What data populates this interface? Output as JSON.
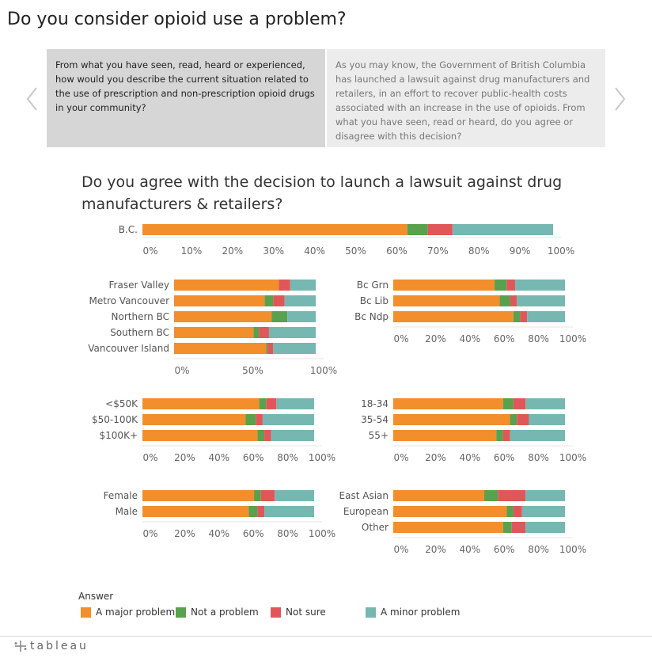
{
  "page": {
    "title": "Do you consider opioid use a problem?"
  },
  "carousel": {
    "cards": [
      "From what you have seen, read, heard or experienced, how would you describe the current situation related to the use of prescription and non-prescription opioid drugs in your community?",
      "As you may know, the Government of British Columbia has launched a lawsuit against drug manufacturers and retailers, in an effort to recover public-health costs associated with an increase in the use of opioids. From what you have seen, read or heard, do you agree or disagree with this decision?"
    ]
  },
  "footer": {
    "brand": "tableau"
  },
  "colors": {
    "major": "#f28e2b",
    "not": "#59a14f",
    "notsure": "#e15759",
    "minor": "#76b7b2"
  },
  "chart_data": {
    "type": "bar",
    "title": "Do you agree with the decision to launch a lawsuit against drug manufacturers & retailers?",
    "legend": {
      "title": "Answer",
      "placement": "bottom-left",
      "items": [
        {
          "key": "major",
          "label": "A major problem"
        },
        {
          "key": "not",
          "label": "Not a problem"
        },
        {
          "key": "notsure",
          "label": "Not sure"
        },
        {
          "key": "minor",
          "label": "A minor problem"
        }
      ]
    },
    "panels": [
      {
        "id": "bc",
        "ticks": [
          "0%",
          "10%",
          "20%",
          "30%",
          "40%",
          "50%",
          "60%",
          "70%",
          "80%",
          "90%",
          "100%"
        ],
        "rows": [
          {
            "label": "B.C.",
            "major": 64.5,
            "not": 5,
            "notsure": 6,
            "minor": 24.5
          }
        ]
      },
      {
        "id": "region",
        "ticks": [
          "0%",
          "50%",
          "100%"
        ],
        "rows": [
          {
            "label": "Fraser Valley",
            "major": 74,
            "not": 0,
            "notsure": 8,
            "minor": 18
          },
          {
            "label": "Metro Vancouver",
            "major": 64,
            "not": 6,
            "notsure": 8,
            "minor": 22
          },
          {
            "label": "Northern BC",
            "major": 69,
            "not": 11,
            "notsure": 0,
            "minor": 20
          },
          {
            "label": "Southern BC",
            "major": 56,
            "not": 4,
            "notsure": 7,
            "minor": 33
          },
          {
            "label": "Vancouver Island",
            "major": 65,
            "not": 1,
            "notsure": 4,
            "minor": 30
          }
        ]
      },
      {
        "id": "party",
        "ticks": [
          "0%",
          "20%",
          "40%",
          "60%",
          "80%",
          "100%"
        ],
        "rows": [
          {
            "label": "Bc Grn",
            "major": 59,
            "not": 7,
            "notsure": 5,
            "minor": 29
          },
          {
            "label": "Bc Lib",
            "major": 62,
            "not": 6,
            "notsure": 4,
            "minor": 28
          },
          {
            "label": "Bc Ndp",
            "major": 70,
            "not": 4,
            "notsure": 4,
            "minor": 22
          }
        ]
      },
      {
        "id": "income",
        "ticks": [
          "0%",
          "20%",
          "40%",
          "60%",
          "80%",
          "100%"
        ],
        "rows": [
          {
            "label": "<$50K",
            "major": 68,
            "not": 4,
            "notsure": 6,
            "minor": 22
          },
          {
            "label": "$50-100K",
            "major": 60,
            "not": 6,
            "notsure": 4,
            "minor": 30
          },
          {
            "label": "$100K+",
            "major": 67,
            "not": 4,
            "notsure": 4,
            "minor": 25
          }
        ]
      },
      {
        "id": "age",
        "ticks": [
          "0%",
          "20%",
          "40%",
          "60%",
          "80%",
          "100%"
        ],
        "rows": [
          {
            "label": "18-34",
            "major": 64,
            "not": 6,
            "notsure": 7,
            "minor": 23
          },
          {
            "label": "35-54",
            "major": 68,
            "not": 4,
            "notsure": 7,
            "minor": 21
          },
          {
            "label": "55+",
            "major": 60,
            "not": 4,
            "notsure": 4,
            "minor": 32
          }
        ]
      },
      {
        "id": "gender",
        "ticks": [
          "0%",
          "20%",
          "40%",
          "60%",
          "80%",
          "100%"
        ],
        "rows": [
          {
            "label": "Female",
            "major": 65,
            "not": 4,
            "notsure": 8,
            "minor": 23
          },
          {
            "label": "Male",
            "major": 62,
            "not": 5,
            "notsure": 4,
            "minor": 29
          }
        ]
      },
      {
        "id": "ethnicity",
        "ticks": [
          "0%",
          "20%",
          "40%",
          "60%",
          "80%",
          "100%"
        ],
        "rows": [
          {
            "label": "East Asian",
            "major": 53,
            "not": 8,
            "notsure": 16,
            "minor": 23
          },
          {
            "label": "European",
            "major": 66,
            "not": 4,
            "notsure": 5,
            "minor": 25
          },
          {
            "label": "Other",
            "major": 64,
            "not": 5,
            "notsure": 8,
            "minor": 23
          }
        ]
      }
    ]
  }
}
